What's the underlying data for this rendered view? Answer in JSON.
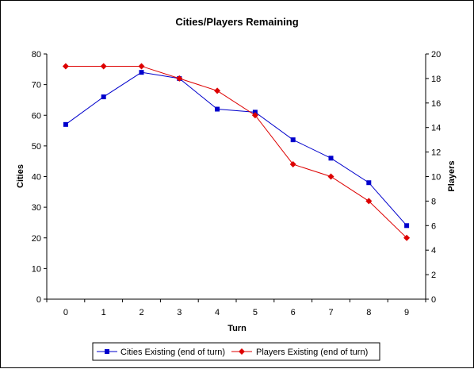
{
  "chart_data": {
    "type": "line",
    "title": "Cities/Players Remaining",
    "xlabel": "Turn",
    "ylabel_left": "Cities",
    "ylabel_right": "Players",
    "x": [
      0,
      1,
      2,
      3,
      4,
      5,
      6,
      7,
      8,
      9
    ],
    "x_tick_labels": [
      "0",
      "1",
      "2",
      "3",
      "4",
      "5",
      "6",
      "7",
      "8",
      "9"
    ],
    "ylim_left": [
      0,
      80
    ],
    "y_ticks_left": [
      "0",
      "10",
      "20",
      "30",
      "40",
      "50",
      "60",
      "70",
      "80"
    ],
    "ylim_right": [
      0,
      20
    ],
    "y_ticks_right": [
      "0",
      "2",
      "4",
      "6",
      "8",
      "10",
      "12",
      "14",
      "16",
      "18",
      "20"
    ],
    "grid": false,
    "legend_position": "bottom",
    "series": [
      {
        "name": "Cities Existing (end of turn)",
        "axis": "left",
        "marker": "square",
        "color": "#0000CC",
        "values": [
          57,
          66,
          74,
          72,
          62,
          61,
          52,
          46,
          38,
          24
        ]
      },
      {
        "name": "Players Existing (end of turn)",
        "axis": "right",
        "marker": "diamond",
        "color": "#DD0000",
        "values": [
          19,
          19,
          19,
          18,
          17,
          15,
          11,
          10,
          8,
          5
        ]
      }
    ]
  }
}
